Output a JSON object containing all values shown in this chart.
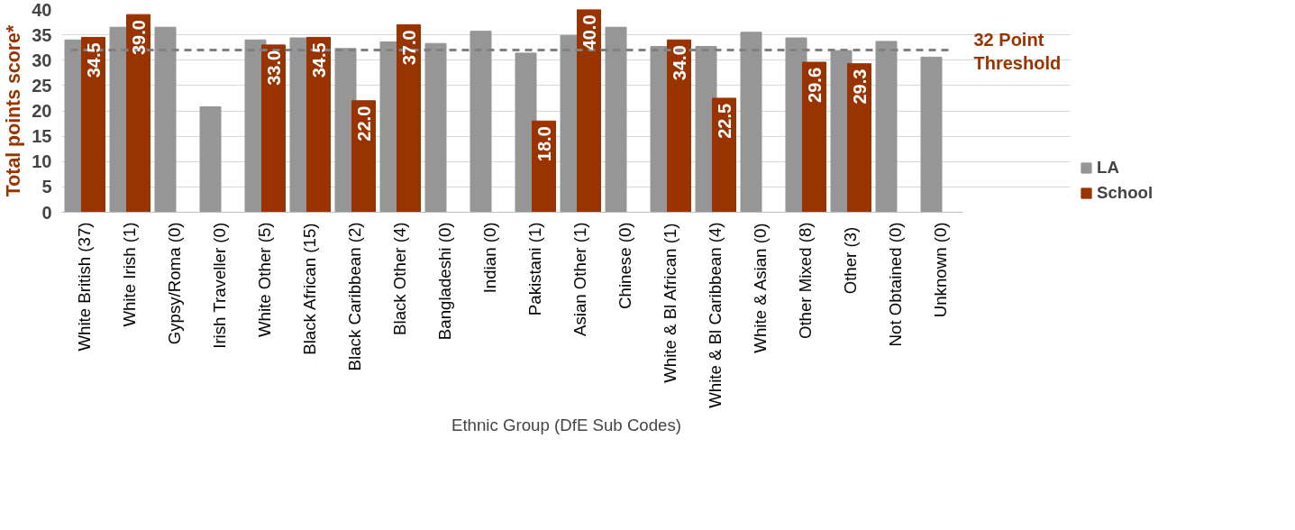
{
  "chart_data": {
    "type": "bar",
    "xlabel": "Ethnic Group (DfE Sub Codes)",
    "ylabel": "Total points score*",
    "categories": [
      "White British (37)",
      "White Irish (1)",
      "Gypsy/Roma (0)",
      "Irish Traveller (0)",
      "White Other (5)",
      "Black African (15)",
      "Black Caribbean (2)",
      "Black Other (4)",
      "Bangladeshi (0)",
      "Indian (0)",
      "Pakistani (1)",
      "Asian Other (1)",
      "Chinese (0)",
      "White & Bl African (1)",
      "White & Bl Caribbean (4)",
      "White & Asian (0)",
      "Other Mixed (8)",
      "Other  (3)",
      "Not Obtained (0)",
      "Unknown (0)"
    ],
    "series": [
      {
        "name": "LA",
        "color": "#969696",
        "values": [
          34.0,
          36.5,
          36.5,
          20.8,
          34.0,
          34.4,
          32.3,
          33.6,
          33.3,
          35.7,
          31.4,
          34.9,
          36.5,
          32.7,
          32.7,
          35.5,
          34.4,
          31.9,
          33.7,
          30.6
        ]
      },
      {
        "name": "School",
        "color": "#993300",
        "values": [
          34.5,
          39.0,
          null,
          null,
          33.0,
          34.5,
          22.0,
          37.0,
          null,
          null,
          18.0,
          40.0,
          null,
          34.0,
          22.5,
          null,
          29.6,
          29.3,
          null,
          null
        ],
        "value_labels": [
          "34.5",
          "39.0",
          null,
          null,
          "33.0",
          "34.5",
          "22.0",
          "37.0",
          null,
          null,
          "18.0",
          "40.0",
          null,
          "34.0",
          "22.5",
          null,
          "29.6",
          "29.3",
          null,
          null
        ]
      }
    ],
    "ylim": [
      0,
      40
    ],
    "yticks": [
      0,
      5,
      10,
      15,
      20,
      25,
      30,
      35,
      40
    ],
    "grid": "y",
    "legend": "right",
    "ref_lines": [
      {
        "axis": "y",
        "value": 32,
        "label": "32 Point Threshold",
        "color": "#808080",
        "line_style": "dashed"
      }
    ]
  }
}
